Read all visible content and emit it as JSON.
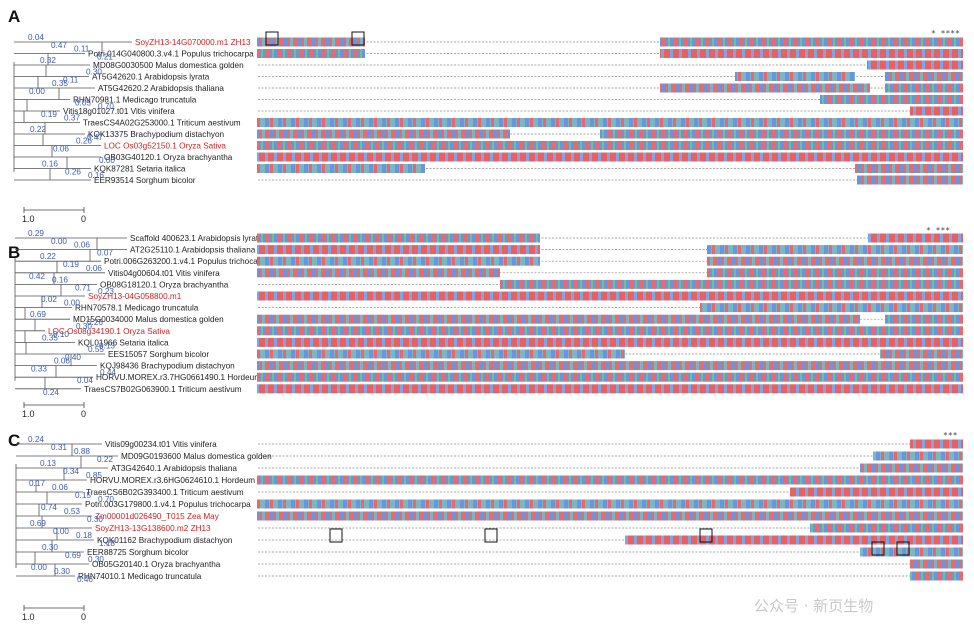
{
  "watermark": "公众号 · 新页生物",
  "scale_bar": {
    "left": "1.0",
    "right": "0"
  },
  "panels": [
    {
      "label": "A",
      "consensus": "*  ****",
      "taxa": [
        {
          "name": "SoyZH13-14G070000.m1 ZH13",
          "highlight": true
        },
        {
          "name": "Potri.014G040800.3.v4.1 Populus trichocarpa",
          "highlight": false
        },
        {
          "name": "MD08G0030500 Malus domestica golden",
          "highlight": false
        },
        {
          "name": "AT5G42620.1 Arabidopsis lyrata",
          "highlight": false
        },
        {
          "name": "AT5G42620.2 Arabidopsis thaliana",
          "highlight": false
        },
        {
          "name": "RHN70981.1 Medicago truncatula",
          "highlight": false
        },
        {
          "name": "Vitis18g01027.t01 Vitis vinifera",
          "highlight": false
        },
        {
          "name": "TraesCS4A02G253000.1 Triticum aestivum",
          "highlight": false
        },
        {
          "name": "KQK13375 Brachypodium distachyon",
          "highlight": false
        },
        {
          "name": "LOC Os03g52150.1 Oryza Sativa",
          "highlight": true
        },
        {
          "name": "OB03G40120.1 Oryza brachyantha",
          "highlight": false
        },
        {
          "name": "KQK87281 Setaria italica",
          "highlight": false
        },
        {
          "name": "EER93514 Sorghum bicolor",
          "highlight": false
        }
      ],
      "branch_values": [
        "0.04",
        "0.47",
        "0.11",
        "0.21",
        "0.32",
        "0.11",
        "0.30",
        "0.00",
        "0.35",
        "0.05",
        "0.70",
        "0.19",
        "0.37",
        "0.47",
        "0.22",
        "0.06",
        "0.26",
        "0.00",
        "0.16",
        "0.26",
        "0.16"
      ]
    },
    {
      "label": "B",
      "consensus": "*  ***",
      "taxa": [
        {
          "name": "Scaffold 400623.1 Arabidopsis lyrata",
          "highlight": false
        },
        {
          "name": "AT2G25110.1 Arabidopsis thaliana",
          "highlight": false
        },
        {
          "name": "Potri.006G263200.1.v4.1 Populus trichocarpa",
          "highlight": false
        },
        {
          "name": "Vitis04g00604.t01 Vitis vinifera",
          "highlight": false
        },
        {
          "name": "OB08G18120.1 Oryza brachyantha",
          "highlight": false
        },
        {
          "name": "SoyZH13-04G058800.m1",
          "highlight": true
        },
        {
          "name": "RHN70578.1 Medicago truncatula",
          "highlight": false
        },
        {
          "name": "MD15G0034000 Malus domestica golden",
          "highlight": false
        },
        {
          "name": "LOC Os08g34190.1 Oryza Sativa",
          "highlight": true
        },
        {
          "name": "KQL01966 Setaria italica",
          "highlight": false
        },
        {
          "name": "EES15057 Sorghum bicolor",
          "highlight": false
        },
        {
          "name": "KQJ98436 Brachypodium distachyon",
          "highlight": false
        },
        {
          "name": "HORVU.MOREX.r3.7HG0661490.1 Hordeum vulgare",
          "highlight": false
        },
        {
          "name": "TraesCS7B02G063900.1 Triticum aestivum",
          "highlight": false
        }
      ],
      "branch_values": [
        "0.29",
        "0.00",
        "0.06",
        "0.07",
        "0.22",
        "0.19",
        "0.06",
        "0.42",
        "0.16",
        "0.71",
        "0.23",
        "0.02",
        "0.00",
        "0.26",
        "0.69",
        "0.10",
        "0.30",
        "0.13",
        "0.35",
        "0.40",
        "0.55",
        "0.33",
        "0.06",
        "0.04",
        "0.44",
        "0.24"
      ]
    },
    {
      "label": "C",
      "consensus": "***",
      "taxa": [
        {
          "name": "Vitis09g00234.t01 Vitis vinifera",
          "highlight": false
        },
        {
          "name": "MD09G0193600 Malus domestica golden",
          "highlight": false
        },
        {
          "name": "AT3G42640.1 Arabidopsis thaliana",
          "highlight": false
        },
        {
          "name": "HORVU.MOREX.r3.6HG0624610.1 Hordeum vulgare",
          "highlight": false
        },
        {
          "name": "TraesCS6B02G393400.1 Triticum aestivum",
          "highlight": false
        },
        {
          "name": "Potri.003G179800.1.v4.1 Populus trichocarpa",
          "highlight": false
        },
        {
          "name": "Zm00001d026490_T015 Zea May",
          "highlight": true
        },
        {
          "name": "SoyZH13-13G138600.m2 ZH13",
          "highlight": true
        },
        {
          "name": "KQK01162 Brachypodium distachyon",
          "highlight": false
        },
        {
          "name": "EER88725 Sorghum bicolor",
          "highlight": false
        },
        {
          "name": "OB05G20140.1 Oryza brachyantha",
          "highlight": false
        },
        {
          "name": "RHN74010.1 Medicago truncatula",
          "highlight": false
        }
      ],
      "branch_values": [
        "0.24",
        "0.31",
        "0.88",
        "0.22",
        "0.13",
        "0.34",
        "0.85",
        "0.17",
        "0.06",
        "0.15",
        "0.70",
        "0.74",
        "0.53",
        "0.30",
        "0.69",
        "0.00",
        "0.18",
        "1.18",
        "0.30",
        "0.69",
        "0.30",
        "0.00",
        "0.30",
        "0.46"
      ]
    }
  ],
  "colors": {
    "A": "#5b8fd8",
    "C": "#5b8fd8",
    "G": "#e85a5a",
    "T": "#e85a5a",
    "gap": "#888888",
    "highlight_text": "#d42020",
    "branch_text": "#3b5bb5"
  }
}
